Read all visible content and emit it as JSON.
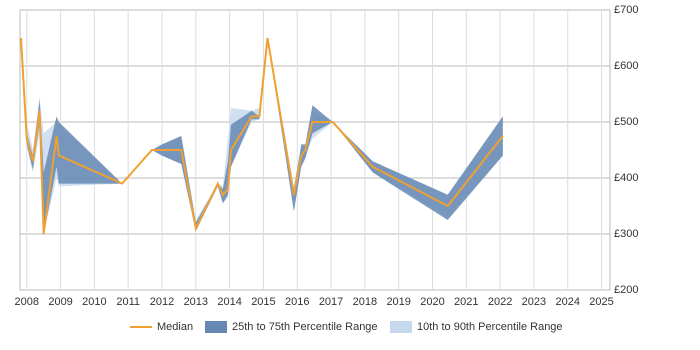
{
  "chart_data": {
    "type": "line",
    "x": [
      2007.83,
      2008.0,
      2008.18,
      2008.38,
      2008.5,
      2008.88,
      2008.95,
      2010.82,
      2011.7,
      2012.0,
      2012.57,
      2013.0,
      2013.65,
      2013.8,
      2013.95,
      2014.04,
      2014.65,
      2014.88,
      2015.12,
      2015.9,
      2016.12,
      2016.24,
      2016.45,
      2017.05,
      2018.23,
      2020.45,
      2022.08
    ],
    "series": [
      {
        "name": "Median",
        "color": "#f0a030",
        "values": [
          650,
          470,
          430,
          520,
          300,
          475,
          440,
          390,
          450,
          450,
          450,
          310,
          390,
          370,
          380,
          450,
          510,
          510,
          650,
          370,
          440,
          450,
          500,
          500,
          420,
          350,
          475
        ]
      },
      {
        "name": "25th to 75th Percentile Range",
        "color": "#6688b4",
        "lower": [
          650,
          460,
          415,
          500,
          300,
          420,
          390,
          390,
          450,
          440,
          425,
          305,
          385,
          355,
          370,
          420,
          505,
          505,
          650,
          340,
          420,
          435,
          480,
          500,
          410,
          325,
          440
        ],
        "upper": [
          650,
          480,
          440,
          540,
          410,
          510,
          500,
          390,
          450,
          460,
          475,
          320,
          390,
          380,
          430,
          495,
          520,
          510,
          650,
          380,
          460,
          460,
          530,
          500,
          430,
          370,
          510
        ]
      },
      {
        "name": "10th to 90th Percentile Range",
        "color": "#c6d8ec",
        "lower": [
          650,
          455,
          410,
          480,
          300,
          400,
          385,
          390,
          450,
          440,
          425,
          305,
          385,
          355,
          365,
          420,
          500,
          505,
          650,
          345,
          425,
          440,
          470,
          500,
          410,
          330,
          440
        ],
        "upper": [
          650,
          500,
          450,
          545,
          480,
          500,
          495,
          390,
          450,
          460,
          475,
          325,
          390,
          385,
          470,
          525,
          520,
          525,
          650,
          385,
          455,
          455,
          520,
          500,
          430,
          370,
          510
        ]
      }
    ],
    "xlim": [
      2007.8,
      2025.25
    ],
    "xticks": [
      2008,
      2009,
      2010,
      2011,
      2012,
      2013,
      2014,
      2015,
      2016,
      2017,
      2018,
      2019,
      2020,
      2021,
      2022,
      2023,
      2024,
      2025
    ],
    "ylim": [
      200,
      700
    ],
    "yticks": [
      {
        "value": 200,
        "label": "£200"
      },
      {
        "value": 300,
        "label": "£300"
      },
      {
        "value": 400,
        "label": "£400"
      },
      {
        "value": 500,
        "label": "£500"
      },
      {
        "value": 600,
        "label": "£600"
      },
      {
        "value": 700,
        "label": "£700"
      }
    ],
    "grid": true,
    "legend": "bottom"
  }
}
